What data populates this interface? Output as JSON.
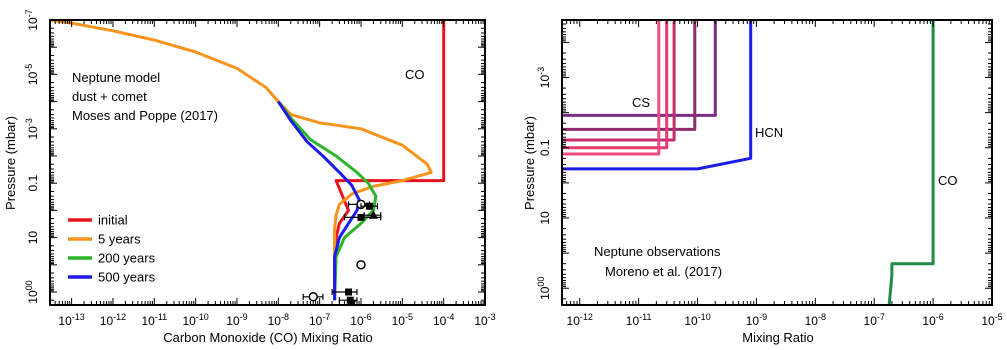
{
  "chart_data": [
    {
      "type": "line",
      "xlabel": "Carbon Monoxide (CO) Mixing Ratio",
      "ylabel": "Pressure (mbar)",
      "x_scale": "log",
      "y_scale": "log",
      "y_inverted": true,
      "xlim": [
        3e-14,
        0.001
      ],
      "ylim": [
        1e-07,
        3000
      ],
      "x_ticks": [
        "10-13",
        "10-12",
        "10-11",
        "10-10",
        "10-9",
        "10-8",
        "10-7",
        "10-6",
        "10-5",
        "10-4",
        "10-3"
      ],
      "y_ticks": [
        {
          "value": 1e-07,
          "label": "10-7"
        },
        {
          "value": 1e-05,
          "label": "10-5"
        },
        {
          "value": 0.001,
          "label": "10-3"
        },
        {
          "value": 0.1,
          "label": "0.1"
        },
        {
          "value": 10,
          "label": "10"
        },
        {
          "value": 1000,
          "label": "1000"
        }
      ],
      "annotation_lines": [
        "Neptune model",
        "dust + comet",
        "Moses and Poppe (2017)"
      ],
      "species_label": {
        "text": "CO",
        "color": "#e8141c"
      },
      "legend_position": "lower-left",
      "series": [
        {
          "name": "initial",
          "color": "#e8141c",
          "points": [
            [
              0.0001,
              1e-07
            ],
            [
              0.0001,
              0.08
            ],
            [
              2.5e-07,
              0.08
            ],
            [
              5e-07,
              1
            ],
            [
              3e-07,
              3
            ],
            [
              2.5e-07,
              10
            ],
            [
              2.3e-07,
              100
            ],
            [
              2.3e-07,
              2000
            ]
          ]
        },
        {
          "name": "5 years",
          "color": "#f7941d",
          "points": [
            [
              3e-14,
              1e-07
            ],
            [
              1e-13,
              1.3e-07
            ],
            [
              1e-12,
              2.5e-07
            ],
            [
              1e-11,
              5.5e-07
            ],
            [
              1e-10,
              1.5e-06
            ],
            [
              1e-09,
              6e-06
            ],
            [
              5e-09,
              3e-05
            ],
            [
              1e-08,
              0.0001
            ],
            [
              2e-08,
              0.0003
            ],
            [
              1e-07,
              0.0006
            ],
            [
              1e-06,
              0.001
            ],
            [
              1e-05,
              0.004
            ],
            [
              4e-05,
              0.02
            ],
            [
              5e-05,
              0.04
            ],
            [
              1e-05,
              0.08
            ],
            [
              2e-06,
              0.13
            ],
            [
              6e-07,
              0.25
            ],
            [
              3e-07,
              0.6
            ],
            [
              2.5e-07,
              1.5
            ],
            [
              2.3e-07,
              5
            ],
            [
              2.3e-07,
              50
            ],
            [
              2.3e-07,
              2000
            ]
          ]
        },
        {
          "name": "200 years",
          "color": "#2ab52a",
          "points": [
            [
              1e-08,
              0.0001
            ],
            [
              2e-08,
              0.0004
            ],
            [
              6e-08,
              0.0025
            ],
            [
              2.5e-07,
              0.01
            ],
            [
              8e-07,
              0.04
            ],
            [
              1.5e-06,
              0.1
            ],
            [
              2.3e-06,
              0.3
            ],
            [
              2e-06,
              1
            ],
            [
              1e-06,
              3
            ],
            [
              4e-07,
              10
            ],
            [
              2.5e-07,
              50
            ],
            [
              2.3e-07,
              2000
            ]
          ]
        },
        {
          "name": "500 years",
          "color": "#1c1ce8",
          "points": [
            [
              1e-08,
              0.0001
            ],
            [
              2e-08,
              0.0005
            ],
            [
              5e-08,
              0.003
            ],
            [
              1.2e-07,
              0.01
            ],
            [
              3e-07,
              0.04
            ],
            [
              6e-07,
              0.12
            ],
            [
              9e-07,
              0.4
            ],
            [
              8e-07,
              1
            ],
            [
              5e-07,
              3
            ],
            [
              3e-07,
              10
            ],
            [
              2.3e-07,
              50
            ],
            [
              2.3e-07,
              2000
            ]
          ]
        }
      ],
      "observations": [
        {
          "marker": "open-circle",
          "x": 1e-06,
          "y": 0.6,
          "xerr": [
            5e-07,
            1.6e-06
          ]
        },
        {
          "marker": "filled-square",
          "x": 1.6e-06,
          "y": 0.7,
          "xerr": [
            1e-06,
            2.5e-06
          ]
        },
        {
          "marker": "filled-triangle",
          "x": 2e-06,
          "y": 1.5,
          "xerr": [
            1.2e-06,
            3e-06
          ]
        },
        {
          "marker": "filled-square",
          "x": 1e-06,
          "y": 1.8,
          "xerr": [
            4e-07,
            3e-06
          ]
        },
        {
          "marker": "open-circle",
          "x": 1e-06,
          "y": 100,
          "xerr": null
        },
        {
          "marker": "open-circle",
          "x": 7e-08,
          "y": 1500,
          "xerr": [
            4e-08,
            1.2e-07
          ]
        },
        {
          "marker": "filled-square",
          "x": 5e-07,
          "y": 1000,
          "xerr": [
            2e-07,
            8e-07
          ]
        },
        {
          "marker": "filled-square",
          "x": 5.5e-07,
          "y": 2000,
          "xerr": [
            3e-07,
            8e-07
          ]
        },
        {
          "marker": "star",
          "x": 6e-07,
          "y": 2400,
          "xerr": null
        }
      ]
    },
    {
      "type": "line",
      "xlabel": "Mixing Ratio",
      "ylabel": "Pressure (mbar)",
      "x_scale": "log",
      "y_scale": "log",
      "y_inverted": true,
      "xlim": [
        5e-13,
        1e-05
      ],
      "ylim": [
        2.3e-05,
        3000
      ],
      "x_ticks": [
        "10-12",
        "10-11",
        "10-10",
        "10-9",
        "10-8",
        "10-7",
        "10-6",
        "10-5"
      ],
      "y_ticks": [
        {
          "value": 0.001,
          "label": "10-3"
        },
        {
          "value": 0.1,
          "label": "0.1"
        },
        {
          "value": 10,
          "label": "10"
        },
        {
          "value": 1000,
          "label": "1000"
        }
      ],
      "annotation_lines": [
        "Neptune observations",
        "Moreno et al. (2017)"
      ],
      "series": [
        {
          "name": "CS",
          "color": "#7b2c84",
          "points": [
            [
              2e-10,
              2.3e-05
            ],
            [
              2e-10,
              0.012
            ],
            [
              5e-13,
              0.012
            ]
          ]
        },
        {
          "name": "CS",
          "color": "#8e2c6e",
          "points": [
            [
              9e-11,
              2.3e-05
            ],
            [
              9e-11,
              0.03
            ],
            [
              5e-13,
              0.03
            ]
          ]
        },
        {
          "name": "CS",
          "color": "#c72c6a",
          "points": [
            [
              4e-11,
              2.3e-05
            ],
            [
              4e-11,
              0.06
            ],
            [
              5e-13,
              0.06
            ]
          ]
        },
        {
          "name": "CS",
          "color": "#e83a6e",
          "points": [
            [
              3e-11,
              2.3e-05
            ],
            [
              3e-11,
              0.1
            ],
            [
              5e-13,
              0.1
            ]
          ]
        },
        {
          "name": "CS",
          "color": "#f04a84",
          "points": [
            [
              2.2e-11,
              2.3e-05
            ],
            [
              2.2e-11,
              0.15
            ],
            [
              5e-13,
              0.15
            ]
          ]
        },
        {
          "name": "HCN",
          "color": "#1c1ce8",
          "points": [
            [
              8e-10,
              2.3e-05
            ],
            [
              8e-10,
              0.2
            ],
            [
              1e-10,
              0.4
            ],
            [
              5e-13,
              0.4
            ]
          ]
        },
        {
          "name": "CO",
          "color": "#1e8c45",
          "points": [
            [
              1e-06,
              2.3e-05
            ],
            [
              1e-06,
              200
            ],
            [
              2e-07,
              200
            ],
            [
              2e-07,
              400
            ],
            [
              1.8e-07,
              3000
            ]
          ]
        }
      ],
      "series_labels": [
        {
          "text": "CS",
          "color": "#d93a78"
        },
        {
          "text": "HCN",
          "color": "#1c1ce8"
        },
        {
          "text": "CO",
          "color": "#1e8c45"
        }
      ]
    }
  ]
}
